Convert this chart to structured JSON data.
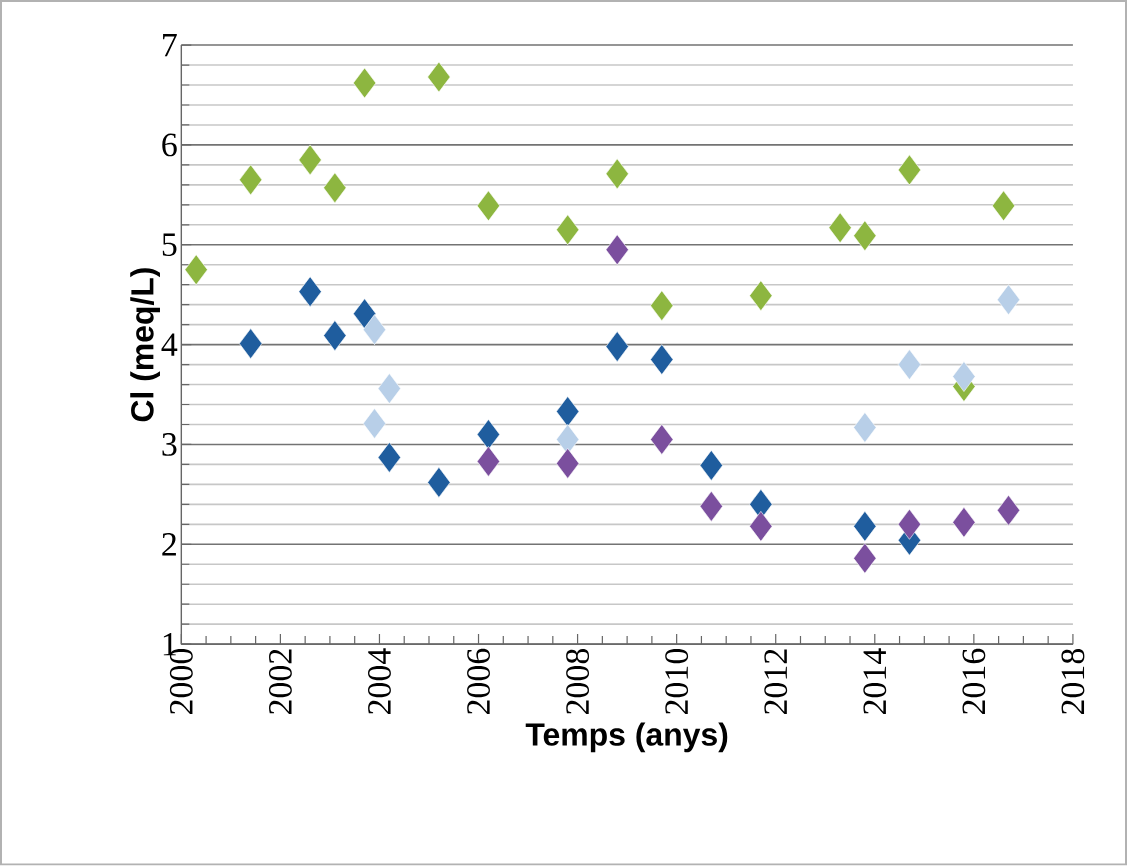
{
  "chart_data": {
    "type": "scatter",
    "xlabel": "Temps (anys)",
    "ylabel": "Cl (meq/L)",
    "marker": "diamond",
    "grid": "y",
    "xlim": [
      2000,
      2018
    ],
    "xticks": [
      2000,
      2002,
      2004,
      2006,
      2008,
      2010,
      2012,
      2014,
      2016,
      2018
    ],
    "ylim": [
      1,
      7
    ],
    "yticks": [
      1,
      2,
      3,
      4,
      5,
      6,
      7
    ],
    "series": [
      {
        "color": "#8db640",
        "x": [
          2000.3,
          2001.4,
          2002.6,
          2003.1,
          2003.7,
          2005.2,
          2006.2,
          2007.8,
          2008.8,
          2009.7,
          2011.7,
          2013.3,
          2013.8,
          2014.7,
          2015.8,
          2016.6
        ],
        "values": [
          4.75,
          5.65,
          5.85,
          5.57,
          6.62,
          6.68,
          5.39,
          5.15,
          5.71,
          4.39,
          4.49,
          5.17,
          5.09,
          5.75,
          3.58,
          5.39
        ]
      },
      {
        "color": "#1f5d9e",
        "x": [
          2001.4,
          2002.6,
          2003.1,
          2003.7,
          2004.2,
          2005.2,
          2006.2,
          2007.8,
          2008.8,
          2009.7,
          2010.7,
          2011.7,
          2013.8,
          2014.7
        ],
        "values": [
          4.01,
          4.53,
          4.09,
          4.31,
          2.87,
          2.62,
          3.1,
          3.33,
          3.98,
          3.85,
          2.79,
          2.4,
          2.18,
          2.04
        ]
      },
      {
        "color": "#b8cfe8",
        "x": [
          2003.9,
          2004.2,
          2003.9,
          2007.8,
          2013.8,
          2014.7,
          2015.8,
          2016.7
        ],
        "values": [
          4.15,
          3.56,
          3.21,
          3.05,
          3.17,
          3.8,
          3.68,
          4.45
        ]
      },
      {
        "color": "#7b4f9e",
        "x": [
          2006.2,
          2007.8,
          2008.8,
          2009.7,
          2010.7,
          2011.7,
          2013.8,
          2014.7,
          2015.8,
          2016.7
        ],
        "values": [
          2.83,
          2.81,
          4.95,
          3.05,
          2.38,
          2.18,
          1.86,
          2.2,
          2.22,
          2.34
        ]
      }
    ]
  }
}
